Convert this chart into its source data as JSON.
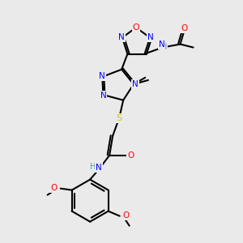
{
  "bg_color": "#eaeaea",
  "atom_colors": {
    "N": "#0000FF",
    "O": "#FF0000",
    "S": "#CCCC00",
    "C": "#000000",
    "H": "#4a9a9a"
  },
  "bond_color": "#000000",
  "font_size": 7.5,
  "bond_width": 1.5
}
